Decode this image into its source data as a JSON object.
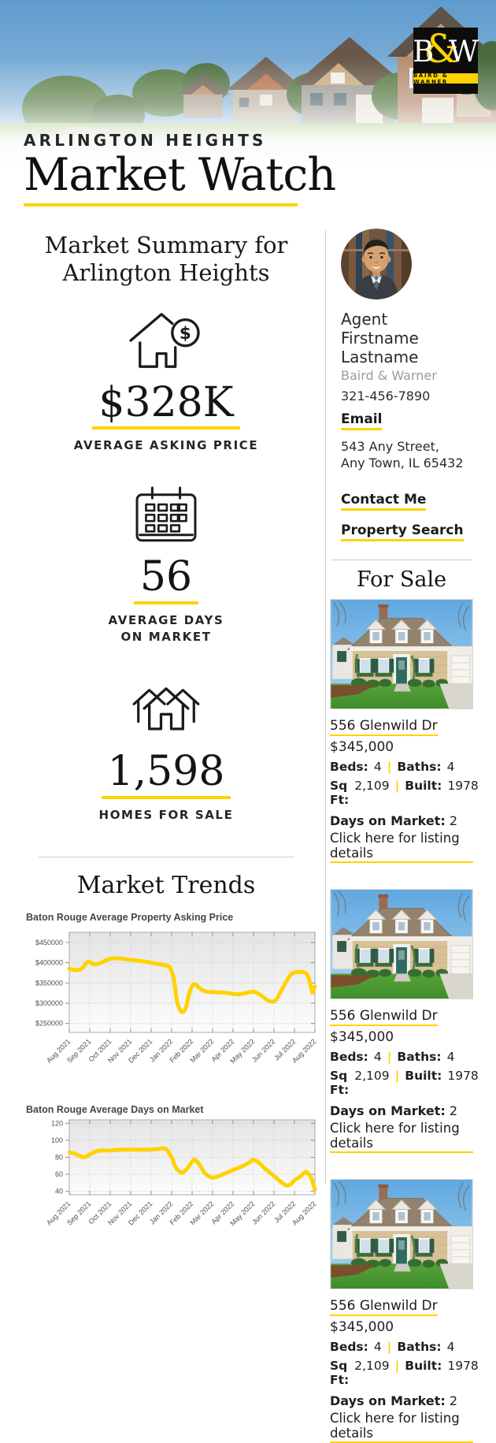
{
  "brand": {
    "logo_b": "B",
    "logo_amp": "&",
    "logo_w": "W",
    "logo_name": "BAIRD & WARNER",
    "yellow": "#FFD200"
  },
  "header": {
    "eyebrow": "ARLINGTON HEIGHTS",
    "title": "Market Watch"
  },
  "summary": {
    "heading": "Market Summary for Arlington Heights",
    "stats": [
      {
        "icon": "house-dollar-icon",
        "value": "$328K",
        "label": "AVERAGE ASKING PRICE"
      },
      {
        "icon": "calendar-icon",
        "value": "56",
        "label": "AVERAGE DAYS\nON MARKET"
      },
      {
        "icon": "homes-icon",
        "value": "1,598",
        "label": "HOMES FOR SALE"
      }
    ]
  },
  "agent": {
    "name": "Agent Firstname Lastname",
    "company": "Baird & Warner",
    "phone": "321-456-7890",
    "email_label": "Email",
    "address": "543 Any Street, Any Town, IL 65432",
    "contact_label": "Contact Me",
    "search_label": "Property Search"
  },
  "for_sale": {
    "heading": "For Sale",
    "listings": [
      {
        "address": "556 Glenwild Dr",
        "price": "$345,000",
        "beds_label": "Beds:",
        "beds": "4",
        "baths_label": "Baths:",
        "baths": "4",
        "sqft_label": "Sq Ft:",
        "sqft": "2,109",
        "built_label": "Built:",
        "built": "1978",
        "dom_label": "Days on Market:",
        "dom": "2",
        "cta": "Click here for listing details"
      },
      {
        "address": "556 Glenwild Dr",
        "price": "$345,000",
        "beds_label": "Beds:",
        "beds": "4",
        "baths_label": "Baths:",
        "baths": "4",
        "sqft_label": "Sq Ft:",
        "sqft": "2,109",
        "built_label": "Built:",
        "built": "1978",
        "dom_label": "Days on Market:",
        "dom": "2",
        "cta": "Click here for listing details"
      },
      {
        "address": "556 Glenwild Dr",
        "price": "$345,000",
        "beds_label": "Beds:",
        "beds": "4",
        "baths_label": "Baths:",
        "baths": "4",
        "sqft_label": "Sq Ft:",
        "sqft": "2,109",
        "built_label": "Built:",
        "built": "1978",
        "dom_label": "Days on Market:",
        "dom": "2",
        "cta": "Click here for listing details"
      }
    ]
  },
  "trends": {
    "heading": "Market Trends"
  },
  "ui": {
    "pipe": "|",
    "dollar_glyph": "$"
  },
  "chart_data": [
    {
      "type": "line",
      "title": "Baton Rouge Average Property Asking Price",
      "x_categories": [
        "Aug 2021",
        "Sep 2021",
        "Oct 2021",
        "Nov 2021",
        "Dec 2021",
        "Jan 2022",
        "Feb 2022",
        "Mar 2022",
        "Apr 2022",
        "May 2022",
        "Jun 2022",
        "Jul 2022",
        "Aug 2022"
      ],
      "ylim": [
        228000,
        475000
      ],
      "ytick_values": [
        250000,
        300000,
        350000,
        400000,
        450000
      ],
      "ytick_labels": [
        "$250000",
        "$300000",
        "$350000",
        "$400000",
        "$450000"
      ],
      "line_color": "#FFD203",
      "grid": true,
      "legend": "none",
      "series": [
        {
          "name": "Average Property Asking Price",
          "points": [
            [
              0,
              385000
            ],
            [
              0.3,
              382000
            ],
            [
              0.6,
              385000
            ],
            [
              0.85,
              400000
            ],
            [
              1.0,
              402000
            ],
            [
              1.2,
              396000
            ],
            [
              1.5,
              399000
            ],
            [
              1.8,
              406000
            ],
            [
              2.0,
              410000
            ],
            [
              2.3,
              411000
            ],
            [
              2.7,
              409000
            ],
            [
              3.2,
              406000
            ],
            [
              3.8,
              402000
            ],
            [
              4.2,
              398000
            ],
            [
              4.6,
              394000
            ],
            [
              4.9,
              389000
            ],
            [
              5.1,
              362000
            ],
            [
              5.25,
              308000
            ],
            [
              5.4,
              285000
            ],
            [
              5.55,
              278000
            ],
            [
              5.7,
              290000
            ],
            [
              5.85,
              322000
            ],
            [
              6.0,
              342000
            ],
            [
              6.15,
              347000
            ],
            [
              6.35,
              338000
            ],
            [
              6.55,
              331000
            ],
            [
              6.8,
              328000
            ],
            [
              7.2,
              327000
            ],
            [
              7.6,
              326000
            ],
            [
              8.0,
              323000
            ],
            [
              8.3,
              322000
            ],
            [
              8.6,
              325000
            ],
            [
              8.9,
              328000
            ],
            [
              9.1,
              327000
            ],
            [
              9.4,
              318000
            ],
            [
              9.7,
              307000
            ],
            [
              9.9,
              304000
            ],
            [
              10.1,
              308000
            ],
            [
              10.4,
              335000
            ],
            [
              10.7,
              362000
            ],
            [
              10.9,
              374000
            ],
            [
              11.2,
              377000
            ],
            [
              11.5,
              376000
            ],
            [
              11.65,
              368000
            ],
            [
              11.8,
              341000
            ],
            [
              11.88,
              326000
            ],
            [
              11.95,
              336000
            ],
            [
              12,
              341000
            ]
          ]
        }
      ]
    },
    {
      "type": "line",
      "title": "Baton Rouge Average Days on Market",
      "x_categories": [
        "Aug 2021",
        "Sep 2021",
        "Oct 2021",
        "Nov 2021",
        "Dec 2021",
        "Jan 2022",
        "Feb 2022",
        "Mar 2022",
        "Apr 2022",
        "May 2022",
        "Jun 2022",
        "Jul 2022",
        "Aug 2022"
      ],
      "ylim": [
        36,
        124
      ],
      "ytick_values": [
        40,
        60,
        80,
        100,
        120
      ],
      "ytick_labels": [
        "40",
        "60",
        "80",
        "100",
        "120"
      ],
      "line_color": "#FFD203",
      "grid": true,
      "legend": "none",
      "series": [
        {
          "name": "Average Days on Market",
          "points": [
            [
              0,
              86
            ],
            [
              0.3,
              84
            ],
            [
              0.7,
              80
            ],
            [
              0.9,
              82
            ],
            [
              1.2,
              86
            ],
            [
              1.5,
              88
            ],
            [
              2.0,
              88
            ],
            [
              2.5,
              89
            ],
            [
              3.0,
              89
            ],
            [
              3.5,
              89
            ],
            [
              4.0,
              89
            ],
            [
              4.4,
              90
            ],
            [
              4.7,
              90
            ],
            [
              5.0,
              80
            ],
            [
              5.2,
              68
            ],
            [
              5.4,
              63
            ],
            [
              5.55,
              62
            ],
            [
              5.8,
              68
            ],
            [
              6.0,
              75
            ],
            [
              6.15,
              77
            ],
            [
              6.4,
              70
            ],
            [
              6.6,
              62
            ],
            [
              6.8,
              58
            ],
            [
              7.0,
              56
            ],
            [
              7.3,
              58
            ],
            [
              7.6,
              61
            ],
            [
              7.9,
              64
            ],
            [
              8.2,
              67
            ],
            [
              8.5,
              70
            ],
            [
              8.8,
              74
            ],
            [
              9.0,
              77
            ],
            [
              9.3,
              73
            ],
            [
              9.5,
              68
            ],
            [
              9.8,
              62
            ],
            [
              10.1,
              56
            ],
            [
              10.4,
              50
            ],
            [
              10.6,
              47
            ],
            [
              10.8,
              48
            ],
            [
              11.0,
              53
            ],
            [
              11.2,
              56
            ],
            [
              11.4,
              60
            ],
            [
              11.55,
              63
            ],
            [
              11.7,
              60
            ],
            [
              11.8,
              57
            ],
            [
              11.9,
              50
            ],
            [
              12,
              42
            ]
          ]
        }
      ]
    }
  ]
}
